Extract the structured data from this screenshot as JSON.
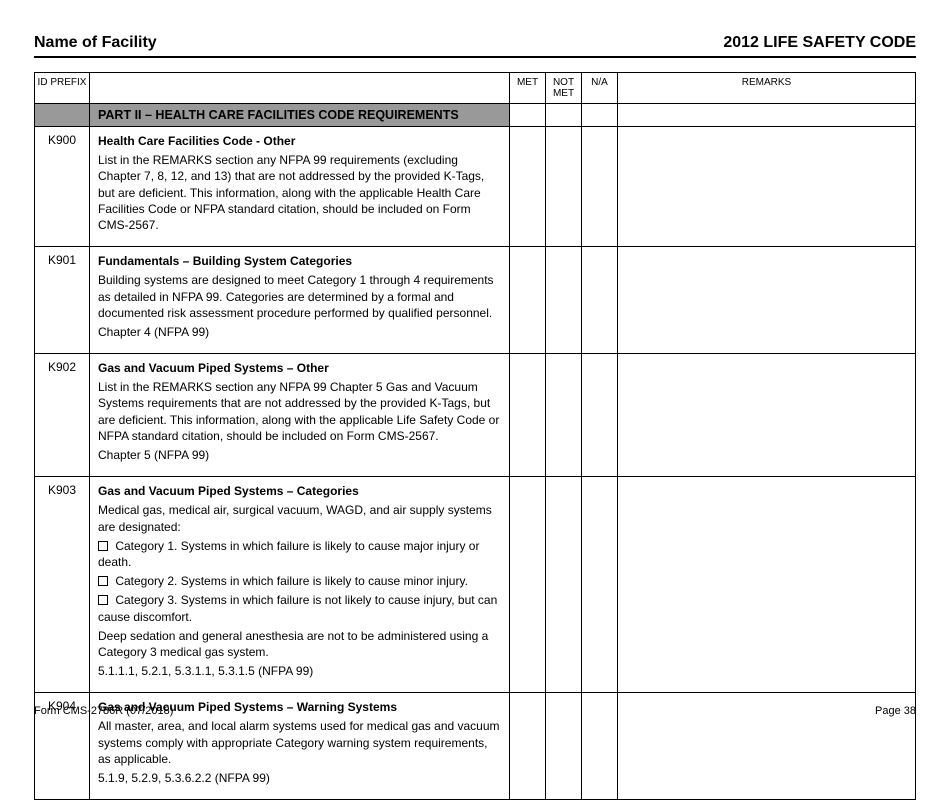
{
  "header": {
    "left": "Name of Facility",
    "right": "2012 LIFE SAFETY CODE"
  },
  "columns": {
    "id": "ID PREFIX",
    "desc": "",
    "met": "MET",
    "not_met": "NOT MET",
    "na": "N/A",
    "remarks": "REMARKS"
  },
  "section_title": "PART II – HEALTH CARE FACILITIES CODE REQUIREMENTS",
  "rows": [
    {
      "id": "K900",
      "title": "Health Care Facilities Code - Other",
      "body": "List in the REMARKS section any NFPA 99 requirements (excluding Chapter 7, 8, 12, and 13) that are not addressed by the provided K-Tags, but are deficient. This information, along with the applicable Health Care Facilities Code or NFPA standard citation, should be included on Form CMS-2567."
    },
    {
      "id": "K901",
      "title": "Fundamentals – Building System Categories",
      "body": "Building systems are designed to meet Category 1 through 4 requirements as detailed in NFPA 99. Categories are determined by a formal and documented risk assessment procedure performed by qualified personnel.",
      "ref": "Chapter 4 (NFPA 99)"
    },
    {
      "id": "K902",
      "title": "Gas and Vacuum Piped Systems – Other",
      "body": "List in the REMARKS section any NFPA 99 Chapter 5 Gas and Vacuum Systems requirements that are not addressed by the provided K-Tags, but are deficient. This information, along with the applicable Life Safety Code or NFPA standard citation, should be included on Form CMS-2567.",
      "ref": "Chapter 5 (NFPA 99)"
    },
    {
      "id": "K903",
      "title": "Gas and Vacuum Piped Systems – Categories",
      "body": "Medical gas, medical air, surgical vacuum, WAGD, and air supply systems are designated:",
      "checks": [
        "Category 1. Systems in which failure is likely to cause major injury or death.",
        "Category 2. Systems in which failure is likely to cause minor injury.",
        "Category 3. Systems in which failure is not likely to cause injury, but can cause discomfort."
      ],
      "body2": "Deep sedation and general anesthesia are not to be administered using a Category 3 medical gas system.",
      "ref": "5.1.1.1, 5.2.1, 5.3.1.1, 5.3.1.5 (NFPA 99)"
    },
    {
      "id": "K904",
      "title": "Gas and Vacuum Piped Systems – Warning Systems",
      "body": "All master, area, and local alarm systems used for medical gas and vacuum systems comply with appropriate Category warning system requirements, as applicable.",
      "ref": "5.1.9, 5.2.9, 5.3.6.2.2 (NFPA 99)"
    }
  ],
  "footer": {
    "left": "Form CMS-2786R (07/2018)",
    "right": "Page 38"
  }
}
